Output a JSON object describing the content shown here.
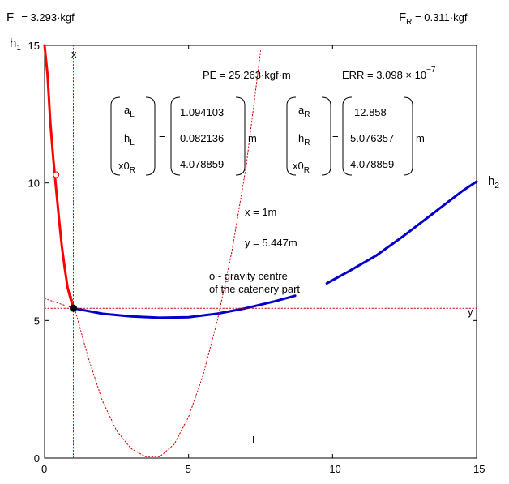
{
  "header": {
    "fl_main": "F",
    "fl_sub": "L",
    "fl_value": " = 3.293·kgf",
    "fr_main": "F",
    "fr_sub": "R",
    "fr_value": " = 0.311·kgf"
  },
  "axis_labels": {
    "h1_main": "h",
    "h1_sub": "1",
    "h2_main": "h",
    "h2_sub": "2",
    "x_marker": "x",
    "y_marker": "y",
    "L": "L"
  },
  "equation": {
    "pe": "PE = 25.263·kgf·m",
    "err": "ERR = 3.098 × 10",
    "err_exp": "−7",
    "left_vars": [
      {
        "main": "a",
        "sub": "L"
      },
      {
        "main": "h",
        "sub": "L"
      },
      {
        "main": "x0",
        "sub": "R"
      }
    ],
    "left_vals": [
      "1.094103",
      "0.082136",
      "4.078859"
    ],
    "right_vars": [
      {
        "main": "a",
        "sub": "R"
      },
      {
        "main": "h",
        "sub": "R"
      },
      {
        "main": "x0",
        "sub": "R"
      }
    ],
    "right_vals": [
      "12.858",
      "5.076357",
      "4.078859"
    ],
    "eq_sign": "=",
    "unit": "m"
  },
  "annotations": {
    "x_text": "x = 1m",
    "y_text": "y = 5.447m",
    "gravity_line1": "o - gravity centre",
    "gravity_line2": "of the catenery part"
  },
  "chart_data": {
    "type": "line",
    "xlim": [
      0,
      15
    ],
    "ylim": [
      0,
      15
    ],
    "xticks": [
      "0",
      "5",
      "10",
      "15"
    ],
    "yticks": [
      "0",
      "5",
      "10",
      "15"
    ],
    "grid": false,
    "colors": {
      "left": "#ff0000",
      "right": "#0000cc",
      "guide": "#cc0000",
      "point": "#000000"
    },
    "series": [
      {
        "kind": "solid-red",
        "x": [
          0,
          0.1,
          0.2,
          0.3,
          0.4,
          0.5,
          0.6,
          0.7,
          0.8,
          0.9,
          1.0
        ],
        "y": [
          15,
          13.95,
          12.2,
          10.9,
          9.8,
          8.7,
          7.7,
          6.9,
          6.2,
          5.8,
          5.447
        ]
      },
      {
        "kind": "solid-blue",
        "x": [
          1,
          2,
          3,
          4,
          5,
          6,
          7,
          8,
          8.7
        ],
        "y": [
          5.447,
          5.25,
          5.15,
          5.1,
          5.12,
          5.25,
          5.45,
          5.7,
          5.9
        ]
      },
      {
        "kind": "solid-blue",
        "x": [
          9.8,
          10.5,
          11.5,
          12.5,
          13.5,
          14.5,
          15
        ],
        "y": [
          6.35,
          6.75,
          7.35,
          8.1,
          8.9,
          9.7,
          10.05
        ]
      },
      {
        "kind": "dotted-parabola",
        "x": [
          0.9,
          1.5,
          2.0,
          2.5,
          3.0,
          3.5,
          4.0,
          4.5,
          5.0,
          5.5,
          6.0,
          6.5,
          7.0,
          7.5
        ],
        "y": [
          6.0,
          3.7,
          2.1,
          1.0,
          0.35,
          0.05,
          0.05,
          0.5,
          1.5,
          3.0,
          5.0,
          7.5,
          10.6,
          14.8
        ]
      },
      {
        "kind": "dotted-horizontal",
        "x": [
          0,
          15
        ],
        "y": [
          5.447,
          5.447
        ]
      },
      {
        "kind": "dotted-vertical",
        "x": [
          1,
          1
        ],
        "y": [
          0,
          15
        ]
      },
      {
        "kind": "dotted-diagonal",
        "x": [
          0,
          1.0
        ],
        "y": [
          5.8,
          5.447
        ]
      }
    ],
    "points": [
      {
        "x": 1.0,
        "y": 5.447,
        "style": "filled"
      },
      {
        "x": 0.4,
        "y": 10.3,
        "style": "open"
      }
    ]
  }
}
